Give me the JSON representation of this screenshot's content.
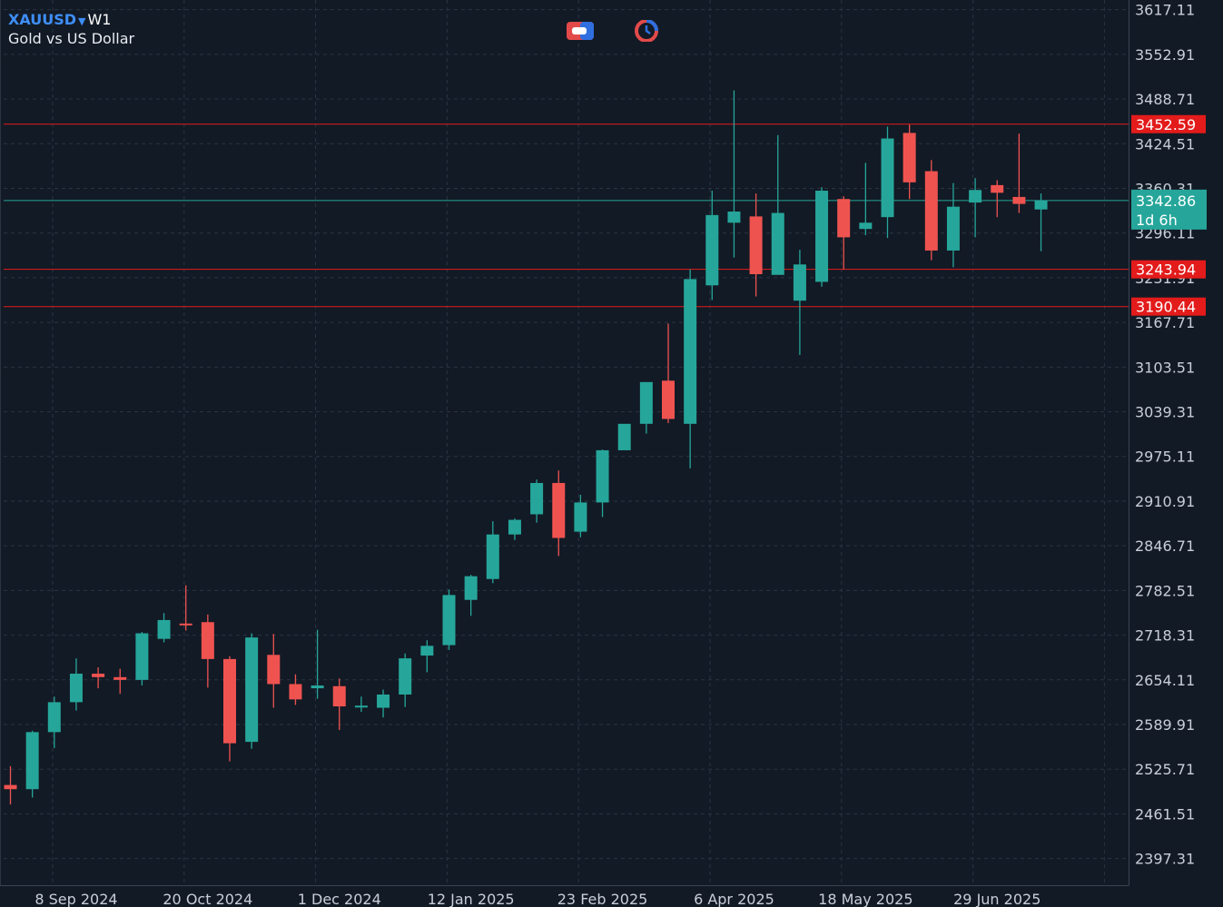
{
  "header": {
    "symbol": "XAUUSD",
    "timeframe": "W1",
    "description": "Gold vs US Dollar"
  },
  "toolbar": {
    "icons": [
      "one-click-trading-icon",
      "market-watch-clock-icon"
    ]
  },
  "colors": {
    "background": "#121a25",
    "grid": "#2a3442",
    "bull": "#26a69a",
    "bear": "#ef5350",
    "level_line": "#e31b1b",
    "price_line": "#26a69a",
    "axis_text": "#c9cfd8"
  },
  "chart_data": {
    "type": "candlestick",
    "symbol": "XAUUSD",
    "timeframe": "W1",
    "title": "Gold vs US Dollar",
    "ylim": [
      2359,
      3631
    ],
    "y_ticks": [
      3617.11,
      3552.91,
      3488.71,
      3424.51,
      3360.31,
      3296.11,
      3231.91,
      3167.71,
      3103.51,
      3039.31,
      2975.11,
      2910.91,
      2846.71,
      2782.51,
      2718.31,
      2654.11,
      2589.91,
      2525.71,
      2461.51,
      2397.31
    ],
    "y_tick_labels": [
      "3617.11",
      "3552.91",
      "3488.71",
      "3424.51",
      "3360.31",
      "3296.11",
      "3231.91",
      "3167.71",
      "3103.51",
      "3039.31",
      "2975.11",
      "2910.91",
      "2846.71",
      "2782.51",
      "2718.31",
      "2654.11",
      "2589.91",
      "2525.71",
      "2461.51",
      "2397.31"
    ],
    "x_labels": [
      "8 Sep 2024",
      "20 Oct 2024",
      "1 Dec 2024",
      "12 Jan 2025",
      "23 Feb 2025",
      "6 Apr 2025",
      "18 May 2025",
      "29 Jun 2025"
    ],
    "x_label_bar_index": [
      3,
      9,
      15,
      21,
      27,
      33,
      39,
      45
    ],
    "grid": true,
    "candles": [
      {
        "o": 2503.0,
        "h": 2530.0,
        "l": 2475.0,
        "c": 2497.0
      },
      {
        "o": 2497.0,
        "h": 2581.0,
        "l": 2485.0,
        "c": 2579.0
      },
      {
        "o": 2579.0,
        "h": 2630.0,
        "l": 2556.0,
        "c": 2622.0
      },
      {
        "o": 2622.0,
        "h": 2685.0,
        "l": 2610.0,
        "c": 2663.0
      },
      {
        "o": 2663.0,
        "h": 2672.0,
        "l": 2642.0,
        "c": 2658.0
      },
      {
        "o": 2658.0,
        "h": 2670.0,
        "l": 2634.0,
        "c": 2654.0
      },
      {
        "o": 2654.0,
        "h": 2723.0,
        "l": 2646.0,
        "c": 2721.0
      },
      {
        "o": 2713.0,
        "h": 2750.0,
        "l": 2708.0,
        "c": 2740.0
      },
      {
        "o": 2735.0,
        "h": 2790.0,
        "l": 2725.0,
        "c": 2733.0
      },
      {
        "o": 2737.0,
        "h": 2748.0,
        "l": 2643.0,
        "c": 2684.0
      },
      {
        "o": 2684.0,
        "h": 2688.0,
        "l": 2537.0,
        "c": 2563.0
      },
      {
        "o": 2565.0,
        "h": 2721.0,
        "l": 2555.0,
        "c": 2715.0
      },
      {
        "o": 2690.0,
        "h": 2720.0,
        "l": 2614.0,
        "c": 2648.0
      },
      {
        "o": 2648.0,
        "h": 2662.0,
        "l": 2618.0,
        "c": 2626.0
      },
      {
        "o": 2642.0,
        "h": 2726.0,
        "l": 2627.0,
        "c": 2646.0
      },
      {
        "o": 2645.0,
        "h": 2656.0,
        "l": 2582.0,
        "c": 2616.0
      },
      {
        "o": 2617.0,
        "h": 2630.0,
        "l": 2608.0,
        "c": 2617.0
      },
      {
        "o": 2614.0,
        "h": 2640.0,
        "l": 2600.0,
        "c": 2633.0
      },
      {
        "o": 2633.0,
        "h": 2692.0,
        "l": 2615.0,
        "c": 2685.0
      },
      {
        "o": 2689.0,
        "h": 2711.0,
        "l": 2665.0,
        "c": 2703.0
      },
      {
        "o": 2704.0,
        "h": 2784.0,
        "l": 2697.0,
        "c": 2776.0
      },
      {
        "o": 2769.0,
        "h": 2805.0,
        "l": 2746.0,
        "c": 2803.0
      },
      {
        "o": 2799.0,
        "h": 2882.0,
        "l": 2793.0,
        "c": 2863.0
      },
      {
        "o": 2863.0,
        "h": 2886.0,
        "l": 2855.0,
        "c": 2884.0
      },
      {
        "o": 2892.0,
        "h": 2942.0,
        "l": 2880.0,
        "c": 2937.0
      },
      {
        "o": 2937.0,
        "h": 2955.0,
        "l": 2832.0,
        "c": 2858.0
      },
      {
        "o": 2867.0,
        "h": 2920.0,
        "l": 2859.0,
        "c": 2909.0
      },
      {
        "o": 2909.0,
        "h": 2985.0,
        "l": 2888.0,
        "c": 2984.0
      },
      {
        "o": 2984.0,
        "h": 3020.0,
        "l": 2985.0,
        "c": 3022.0
      },
      {
        "o": 3022.0,
        "h": 3074.0,
        "l": 3008.0,
        "c": 3082.0
      },
      {
        "o": 3084.0,
        "h": 3166.0,
        "l": 3023.0,
        "c": 3029.0
      },
      {
        "o": 3022.0,
        "h": 3244.0,
        "l": 2958.0,
        "c": 3230.0
      },
      {
        "o": 3221.0,
        "h": 3357.0,
        "l": 3200.0,
        "c": 3322.0
      },
      {
        "o": 3311.0,
        "h": 3501.0,
        "l": 3261.0,
        "c": 3327.0
      },
      {
        "o": 3320.0,
        "h": 3353.0,
        "l": 3205.0,
        "c": 3237.0
      },
      {
        "o": 3236.0,
        "h": 3437.0,
        "l": 3237.0,
        "c": 3325.0
      },
      {
        "o": 3199.0,
        "h": 3272.0,
        "l": 3121.0,
        "c": 3251.0
      },
      {
        "o": 3226.0,
        "h": 3362.0,
        "l": 3219.0,
        "c": 3357.0
      },
      {
        "o": 3345.0,
        "h": 3349.0,
        "l": 3244.0,
        "c": 3290.0
      },
      {
        "o": 3302.0,
        "h": 3397.0,
        "l": 3293.0,
        "c": 3311.0
      },
      {
        "o": 3319.0,
        "h": 3449.0,
        "l": 3289.0,
        "c": 3432.0
      },
      {
        "o": 3440.0,
        "h": 3452.0,
        "l": 3345.0,
        "c": 3369.0
      },
      {
        "o": 3385.0,
        "h": 3401.0,
        "l": 3257.0,
        "c": 3271.0
      },
      {
        "o": 3271.0,
        "h": 3368.0,
        "l": 3247.0,
        "c": 3334.0
      },
      {
        "o": 3340.0,
        "h": 3375.0,
        "l": 3290.0,
        "c": 3358.0
      },
      {
        "o": 3365.0,
        "h": 3372.0,
        "l": 3319.0,
        "c": 3354.0
      },
      {
        "o": 3348.0,
        "h": 3439.0,
        "l": 3325.0,
        "c": 3338.0
      },
      {
        "o": 3330.0,
        "h": 3353.0,
        "l": 3270.0,
        "c": 3342.86
      }
    ],
    "horizontal_levels": [
      {
        "price": 3452.59,
        "label": "3452.59",
        "color": "#e31b1b"
      },
      {
        "price": 3243.94,
        "label": "3243.94",
        "color": "#e31b1b"
      },
      {
        "price": 3190.44,
        "label": "3190.44",
        "color": "#e31b1b"
      }
    ],
    "current_price": {
      "price": 3342.86,
      "label": "3342.86",
      "countdown": "1d 6h",
      "color": "#26a69a"
    }
  }
}
